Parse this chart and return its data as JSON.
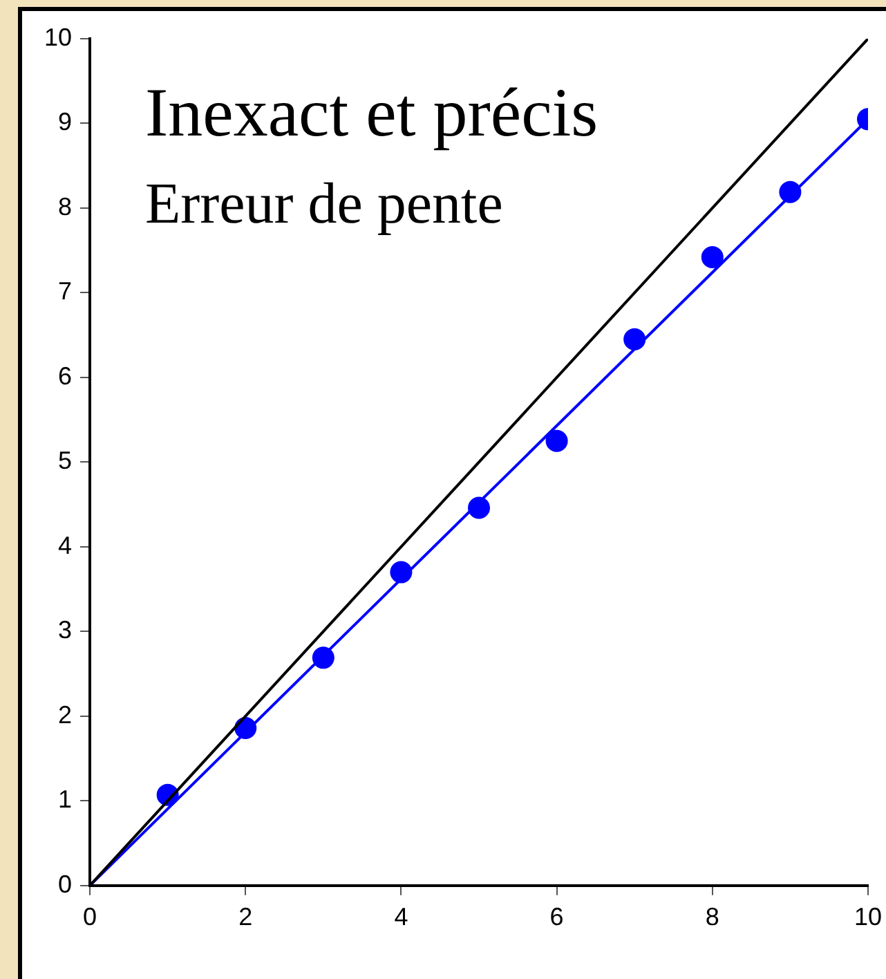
{
  "chart_data": {
    "type": "scatter",
    "annotations": [
      "Inexact et précis",
      "Erreur de pente"
    ],
    "series": [
      {
        "type": "line",
        "color": "#000000",
        "x": [
          0,
          10
        ],
        "values": [
          0,
          10
        ],
        "marker": "none"
      },
      {
        "type": "line",
        "color": "#0000ff",
        "x": [
          0,
          10
        ],
        "values": [
          0,
          9.05
        ],
        "marker": "none"
      },
      {
        "color": "#0000ff",
        "x": [
          1,
          2,
          3,
          4,
          5,
          6,
          7,
          8,
          9,
          10
        ],
        "values": [
          1.07,
          1.86,
          2.69,
          3.7,
          4.46,
          5.25,
          6.45,
          7.42,
          8.19,
          9.05
        ],
        "marker": "circle"
      }
    ],
    "xlim": [
      0,
      10
    ],
    "xticks": [
      0,
      2,
      4,
      6,
      8,
      10
    ],
    "ylim": [
      0,
      10
    ],
    "yticks": [
      0,
      1,
      2,
      3,
      4,
      5,
      6,
      7,
      8,
      9,
      10
    ],
    "grid": false,
    "legend": false
  }
}
